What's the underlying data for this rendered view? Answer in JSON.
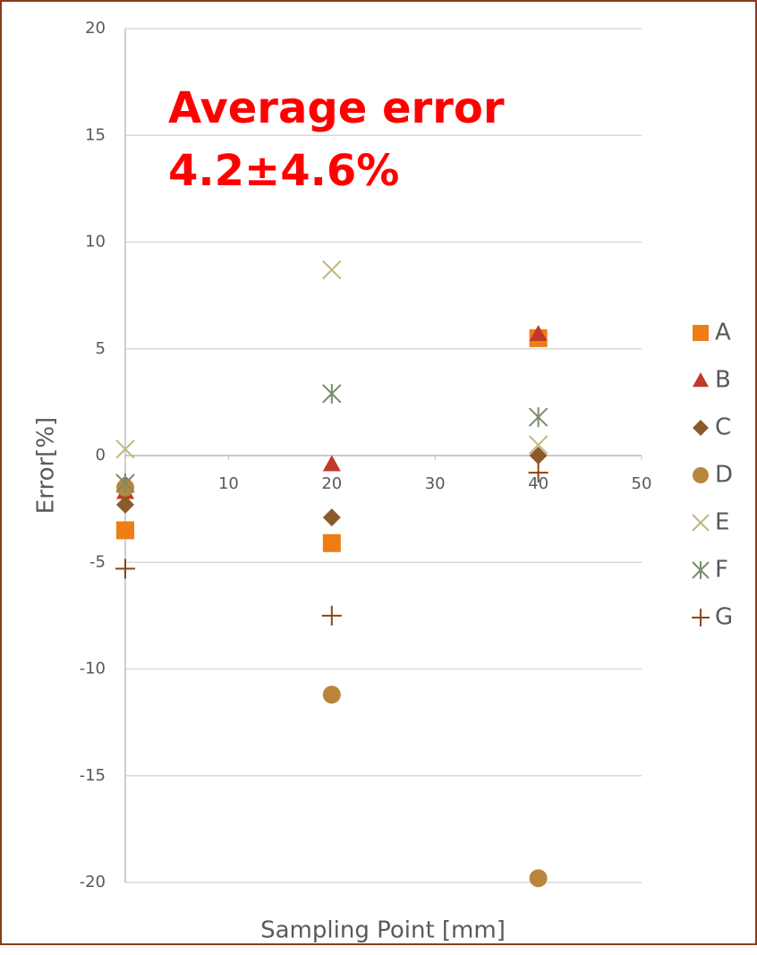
{
  "chart_data": {
    "type": "scatter",
    "annotations": [
      "Average error",
      "4.2±4.6%"
    ],
    "xlabel": "Sampling Point [mm]",
    "ylabel": "Error[%]",
    "x": [
      0,
      20,
      40
    ],
    "xlim": [
      0,
      50
    ],
    "xticks": [
      0,
      10,
      20,
      30,
      40,
      50
    ],
    "ylim": [
      -20,
      20
    ],
    "yticks": [
      -20,
      -15,
      -10,
      -5,
      0,
      5,
      10,
      15,
      20
    ],
    "grid": true,
    "legend": "right",
    "series": [
      {
        "name": "A",
        "color": "#ED7D14",
        "marker": "square",
        "values": [
          -3.5,
          -4.1,
          5.5
        ]
      },
      {
        "name": "B",
        "color": "#C0392B",
        "marker": "triangle",
        "values": [
          -1.7,
          -0.4,
          5.7
        ]
      },
      {
        "name": "C",
        "color": "#8B5A2B",
        "marker": "diamond",
        "values": [
          -2.3,
          -2.9,
          0
        ]
      },
      {
        "name": "D",
        "color": "#B8863B",
        "marker": "circle",
        "values": [
          -1.5,
          -11.2,
          -19.8
        ]
      },
      {
        "name": "E",
        "color": "#C2B77A",
        "marker": "x",
        "values": [
          0.3,
          8.7,
          0.5
        ]
      },
      {
        "name": "F",
        "color": "#7A8B6A",
        "marker": "asterisk",
        "values": [
          -1.3,
          2.9,
          1.8
        ]
      },
      {
        "name": "G",
        "color": "#8B4513",
        "marker": "plus",
        "values": [
          -5.3,
          -7.5,
          -0.8
        ]
      }
    ]
  }
}
